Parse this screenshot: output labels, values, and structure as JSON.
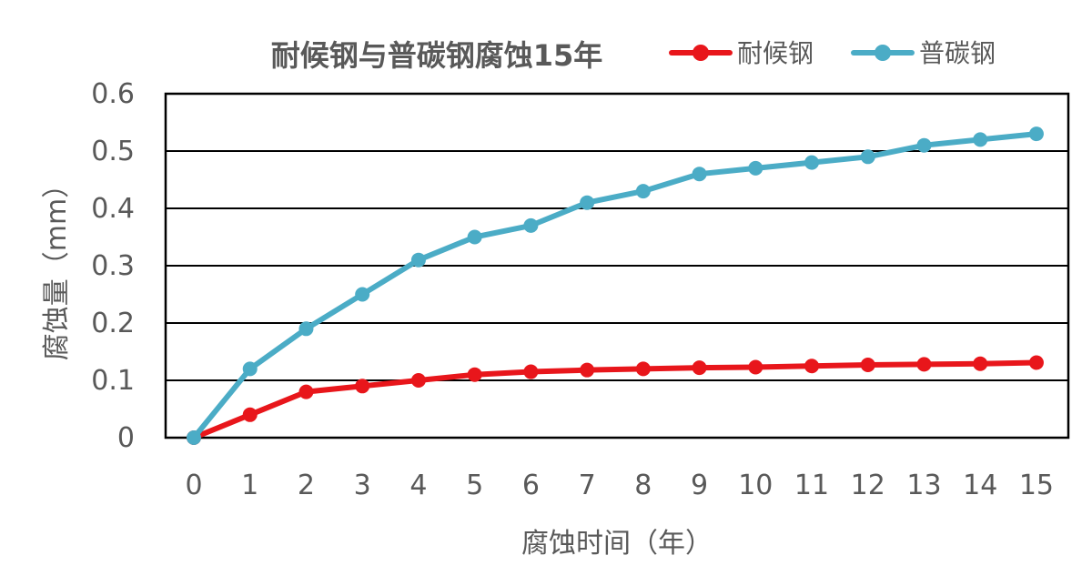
{
  "chart_data": {
    "type": "line",
    "title": "耐候钢与普碳钢腐蚀15年",
    "xlabel": "腐蚀时间（年）",
    "ylabel": "腐蚀量（mm）",
    "x": [
      0,
      1,
      2,
      3,
      4,
      5,
      6,
      7,
      8,
      9,
      10,
      11,
      12,
      13,
      14,
      15
    ],
    "x_tick_labels": [
      "0",
      "1",
      "2",
      "3",
      "4",
      "5",
      "6",
      "7",
      "8",
      "9",
      "10",
      "11",
      "12",
      "13",
      "14",
      "15"
    ],
    "ylim": [
      0,
      0.6
    ],
    "y_ticks": [
      0,
      0.1,
      0.2,
      0.3,
      0.4,
      0.5,
      0.6
    ],
    "y_tick_labels": [
      "0",
      "0.1",
      "0.2",
      "0.3",
      "0.4",
      "0.5",
      "0.6"
    ],
    "grid": true,
    "legend_position": "top-right",
    "series": [
      {
        "name": "耐候钢",
        "color": "#e8161b",
        "values": [
          0,
          0.04,
          0.08,
          0.09,
          0.1,
          0.11,
          0.115,
          0.118,
          0.12,
          0.122,
          0.123,
          0.125,
          0.127,
          0.128,
          0.129,
          0.131
        ]
      },
      {
        "name": "普碳钢",
        "color": "#4bacc6",
        "values": [
          0,
          0.12,
          0.19,
          0.25,
          0.31,
          0.35,
          0.37,
          0.41,
          0.43,
          0.46,
          0.47,
          0.48,
          0.49,
          0.51,
          0.52,
          0.53
        ]
      }
    ]
  }
}
